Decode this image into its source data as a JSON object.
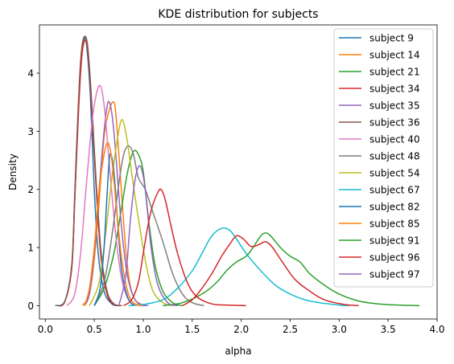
{
  "chart_data": {
    "type": "line",
    "title": "KDE distribution for subjects",
    "xlabel": "alpha",
    "ylabel": "Density",
    "xlim": [
      -0.06,
      4.0
    ],
    "ylim": [
      -0.23,
      4.83
    ],
    "x_ticks": [
      "0.0",
      "0.5",
      "1.0",
      "1.5",
      "2.0",
      "2.5",
      "3.0",
      "3.5",
      "4.0"
    ],
    "y_ticks": [
      "0",
      "1",
      "2",
      "3",
      "4"
    ],
    "grid": false,
    "legend_position": "upper right",
    "series": [
      {
        "name": "subject 9",
        "color": "#1f77b4",
        "points": [
          [
            0.1,
            0
          ],
          [
            0.2,
            0.08
          ],
          [
            0.27,
            0.7
          ],
          [
            0.3,
            1.8
          ],
          [
            0.33,
            3.1
          ],
          [
            0.36,
            4.1
          ],
          [
            0.39,
            4.55
          ],
          [
            0.42,
            4.5
          ],
          [
            0.46,
            3.6
          ],
          [
            0.5,
            2.0
          ],
          [
            0.54,
            0.9
          ],
          [
            0.6,
            0.25
          ],
          [
            0.68,
            0.03
          ],
          [
            0.75,
            0
          ]
        ]
      },
      {
        "name": "subject 14",
        "color": "#ff7f0e",
        "points": [
          [
            0.38,
            0
          ],
          [
            0.45,
            0.2
          ],
          [
            0.5,
            0.8
          ],
          [
            0.55,
            1.8
          ],
          [
            0.6,
            2.9
          ],
          [
            0.65,
            3.35
          ],
          [
            0.7,
            3.5
          ],
          [
            0.73,
            3.1
          ],
          [
            0.78,
            1.9
          ],
          [
            0.83,
            0.8
          ],
          [
            0.88,
            0.25
          ],
          [
            0.95,
            0.03
          ],
          [
            1.02,
            0
          ]
        ]
      },
      {
        "name": "subject 21",
        "color": "#2ca02c",
        "points": [
          [
            0.5,
            0
          ],
          [
            0.6,
            0.3
          ],
          [
            0.7,
            0.9
          ],
          [
            0.78,
            1.7
          ],
          [
            0.84,
            2.3
          ],
          [
            0.9,
            2.65
          ],
          [
            0.95,
            2.6
          ],
          [
            1.0,
            2.3
          ],
          [
            1.06,
            1.4
          ],
          [
            1.12,
            0.7
          ],
          [
            1.2,
            0.25
          ],
          [
            1.3,
            0.05
          ],
          [
            1.4,
            0
          ]
        ]
      },
      {
        "name": "subject 34",
        "color": "#d62728",
        "points": [
          [
            0.12,
            0
          ],
          [
            0.2,
            0.07
          ],
          [
            0.27,
            0.65
          ],
          [
            0.3,
            1.8
          ],
          [
            0.33,
            3.0
          ],
          [
            0.36,
            4.0
          ],
          [
            0.39,
            4.5
          ],
          [
            0.43,
            4.45
          ],
          [
            0.47,
            3.5
          ],
          [
            0.52,
            2.0
          ],
          [
            0.57,
            0.8
          ],
          [
            0.63,
            0.2
          ],
          [
            0.7,
            0.02
          ],
          [
            0.78,
            0
          ]
        ]
      },
      {
        "name": "subject 35",
        "color": "#9467bd",
        "points": [
          [
            0.4,
            0
          ],
          [
            0.45,
            0.2
          ],
          [
            0.5,
            0.9
          ],
          [
            0.55,
            2.0
          ],
          [
            0.6,
            3.0
          ],
          [
            0.64,
            3.5
          ],
          [
            0.68,
            3.3
          ],
          [
            0.72,
            2.6
          ],
          [
            0.77,
            1.5
          ],
          [
            0.83,
            0.6
          ],
          [
            0.9,
            0.15
          ],
          [
            0.98,
            0.02
          ],
          [
            1.05,
            0
          ]
        ]
      },
      {
        "name": "subject 36",
        "color": "#8c564b",
        "points": [
          [
            0.12,
            0
          ],
          [
            0.2,
            0.07
          ],
          [
            0.27,
            0.7
          ],
          [
            0.3,
            1.9
          ],
          [
            0.33,
            3.2
          ],
          [
            0.36,
            4.2
          ],
          [
            0.39,
            4.6
          ],
          [
            0.43,
            4.5
          ],
          [
            0.47,
            3.6
          ],
          [
            0.52,
            2.1
          ],
          [
            0.57,
            0.9
          ],
          [
            0.63,
            0.25
          ],
          [
            0.7,
            0.03
          ],
          [
            0.78,
            0
          ]
        ]
      },
      {
        "name": "subject 40",
        "color": "#e377c2",
        "points": [
          [
            0.22,
            0
          ],
          [
            0.3,
            0.2
          ],
          [
            0.36,
            0.9
          ],
          [
            0.42,
            2.1
          ],
          [
            0.48,
            3.2
          ],
          [
            0.53,
            3.7
          ],
          [
            0.57,
            3.75
          ],
          [
            0.61,
            3.3
          ],
          [
            0.66,
            2.3
          ],
          [
            0.72,
            1.2
          ],
          [
            0.78,
            0.45
          ],
          [
            0.85,
            0.1
          ],
          [
            0.93,
            0
          ]
        ]
      },
      {
        "name": "subject 48",
        "color": "#7f7f7f",
        "points": [
          [
            0.5,
            0
          ],
          [
            0.6,
            0.4
          ],
          [
            0.68,
            1.2
          ],
          [
            0.75,
            2.1
          ],
          [
            0.8,
            2.6
          ],
          [
            0.85,
            2.75
          ],
          [
            0.9,
            2.6
          ],
          [
            0.95,
            2.2
          ],
          [
            1.02,
            2.0
          ],
          [
            1.1,
            1.6
          ],
          [
            1.2,
            1.1
          ],
          [
            1.3,
            0.55
          ],
          [
            1.4,
            0.2
          ],
          [
            1.5,
            0.05
          ],
          [
            1.62,
            0
          ]
        ]
      },
      {
        "name": "subject 54",
        "color": "#bcbd22",
        "points": [
          [
            0.45,
            0
          ],
          [
            0.55,
            0.4
          ],
          [
            0.62,
            1.3
          ],
          [
            0.68,
            2.2
          ],
          [
            0.73,
            2.8
          ],
          [
            0.78,
            3.2
          ],
          [
            0.83,
            2.9
          ],
          [
            0.88,
            2.3
          ],
          [
            0.95,
            1.5
          ],
          [
            1.03,
            0.7
          ],
          [
            1.1,
            0.25
          ],
          [
            1.2,
            0.05
          ],
          [
            1.3,
            0
          ]
        ]
      },
      {
        "name": "subject 67",
        "color": "#17becf",
        "points": [
          [
            0.85,
            0
          ],
          [
            1.0,
            0.02
          ],
          [
            1.2,
            0.1
          ],
          [
            1.35,
            0.3
          ],
          [
            1.5,
            0.6
          ],
          [
            1.6,
            0.9
          ],
          [
            1.7,
            1.2
          ],
          [
            1.8,
            1.33
          ],
          [
            1.88,
            1.3
          ],
          [
            1.95,
            1.15
          ],
          [
            2.05,
            0.9
          ],
          [
            2.2,
            0.6
          ],
          [
            2.35,
            0.35
          ],
          [
            2.5,
            0.2
          ],
          [
            2.65,
            0.1
          ],
          [
            2.8,
            0.05
          ],
          [
            3.0,
            0.01
          ],
          [
            3.1,
            0
          ]
        ]
      },
      {
        "name": "subject 82",
        "color": "#1f77b4",
        "points": [
          [
            0.5,
            0
          ],
          [
            0.56,
            0.3
          ],
          [
            0.6,
            1.0
          ],
          [
            0.63,
            1.9
          ],
          [
            0.66,
            2.6
          ],
          [
            0.7,
            2.3
          ],
          [
            0.74,
            1.4
          ],
          [
            0.78,
            0.6
          ],
          [
            0.84,
            0.15
          ],
          [
            0.9,
            0
          ]
        ]
      },
      {
        "name": "subject 85",
        "color": "#ff7f0e",
        "points": [
          [
            0.4,
            0
          ],
          [
            0.45,
            0.3
          ],
          [
            0.5,
            1.0
          ],
          [
            0.55,
            2.0
          ],
          [
            0.6,
            2.6
          ],
          [
            0.64,
            2.8
          ],
          [
            0.68,
            2.5
          ],
          [
            0.73,
            1.6
          ],
          [
            0.78,
            0.8
          ],
          [
            0.84,
            0.25
          ],
          [
            0.9,
            0.05
          ],
          [
            0.98,
            0
          ]
        ]
      },
      {
        "name": "subject 91",
        "color": "#2ca02c",
        "points": [
          [
            1.2,
            0
          ],
          [
            1.4,
            0.05
          ],
          [
            1.6,
            0.2
          ],
          [
            1.75,
            0.4
          ],
          [
            1.85,
            0.6
          ],
          [
            1.95,
            0.75
          ],
          [
            2.05,
            0.85
          ],
          [
            2.12,
            1.0
          ],
          [
            2.2,
            1.2
          ],
          [
            2.25,
            1.25
          ],
          [
            2.3,
            1.2
          ],
          [
            2.4,
            1.0
          ],
          [
            2.5,
            0.85
          ],
          [
            2.6,
            0.75
          ],
          [
            2.7,
            0.55
          ],
          [
            2.85,
            0.35
          ],
          [
            3.0,
            0.2
          ],
          [
            3.2,
            0.08
          ],
          [
            3.4,
            0.03
          ],
          [
            3.6,
            0.01
          ],
          [
            3.82,
            0
          ]
        ]
      },
      {
        "name": "subject 96",
        "color": "#d62728",
        "points": [
          [
            1.4,
            0
          ],
          [
            1.5,
            0.1
          ],
          [
            1.6,
            0.3
          ],
          [
            1.7,
            0.55
          ],
          [
            1.8,
            0.85
          ],
          [
            1.88,
            1.05
          ],
          [
            1.95,
            1.2
          ],
          [
            2.02,
            1.15
          ],
          [
            2.1,
            1.02
          ],
          [
            2.18,
            1.05
          ],
          [
            2.25,
            1.1
          ],
          [
            2.32,
            1.0
          ],
          [
            2.42,
            0.75
          ],
          [
            2.55,
            0.45
          ],
          [
            2.7,
            0.25
          ],
          [
            2.85,
            0.1
          ],
          [
            3.05,
            0.02
          ],
          [
            3.2,
            0
          ]
        ]
      },
      {
        "name": "subject 97",
        "color": "#9467bd",
        "points": [
          [
            0.75,
            0
          ],
          [
            0.82,
            0.5
          ],
          [
            0.87,
            1.5
          ],
          [
            0.92,
            2.2
          ],
          [
            0.97,
            2.4
          ],
          [
            1.02,
            2.0
          ],
          [
            1.08,
            1.0
          ],
          [
            1.15,
            0.35
          ],
          [
            1.25,
            0.05
          ],
          [
            1.35,
            0
          ]
        ]
      },
      {
        "name": "",
        "color": "#d62728",
        "points": [
          [
            0.8,
            0
          ],
          [
            0.88,
            0.1
          ],
          [
            0.95,
            0.4
          ],
          [
            1.0,
            0.9
          ],
          [
            1.05,
            1.4
          ],
          [
            1.1,
            1.75
          ],
          [
            1.15,
            1.95
          ],
          [
            1.18,
            2.0
          ],
          [
            1.22,
            1.85
          ],
          [
            1.28,
            1.4
          ],
          [
            1.35,
            0.9
          ],
          [
            1.45,
            0.4
          ],
          [
            1.55,
            0.15
          ],
          [
            1.7,
            0.03
          ],
          [
            1.85,
            0.01
          ],
          [
            2.05,
            0
          ]
        ]
      }
    ]
  }
}
